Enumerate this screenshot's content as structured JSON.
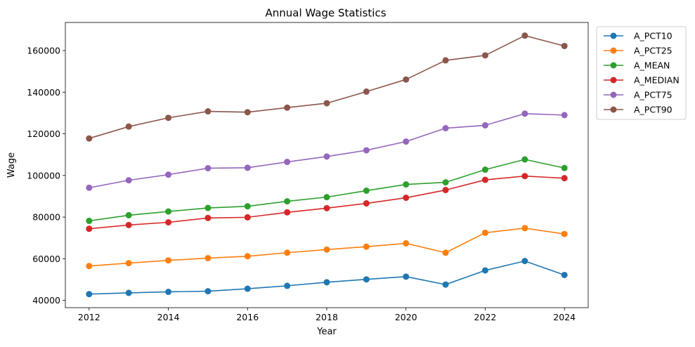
{
  "chart_data": {
    "type": "line",
    "title": "Annual Wage Statistics",
    "xlabel": "Year",
    "ylabel": "Wage",
    "x": [
      2012,
      2013,
      2014,
      2015,
      2016,
      2017,
      2018,
      2019,
      2020,
      2021,
      2022,
      2023,
      2024
    ],
    "xlim": [
      2011.4,
      2024.6
    ],
    "ylim": [
      36500,
      173500
    ],
    "x_ticks": [
      2012,
      2014,
      2016,
      2018,
      2020,
      2022,
      2024
    ],
    "y_ticks": [
      40000,
      60000,
      80000,
      100000,
      120000,
      140000,
      160000
    ],
    "x_tick_labels": [
      "2012",
      "2014",
      "2016",
      "2018",
      "2020",
      "2022",
      "2024"
    ],
    "y_tick_labels": [
      "40000",
      "60000",
      "80000",
      "100000",
      "120000",
      "140000",
      "160000"
    ],
    "grid": false,
    "legend_position": "outside-top-right",
    "series": [
      {
        "name": "A_PCT10",
        "color": "#1f77b4",
        "values": [
          43000,
          43600,
          44100,
          44400,
          45600,
          47000,
          48700,
          50100,
          51400,
          47600,
          54400,
          58900,
          52200
        ]
      },
      {
        "name": "A_PCT25",
        "color": "#ff7f0e",
        "values": [
          56500,
          57900,
          59200,
          60300,
          61200,
          62900,
          64400,
          65800,
          67400,
          62900,
          72500,
          74700,
          71900
        ]
      },
      {
        "name": "A_MEAN",
        "color": "#2ca02c",
        "values": [
          78200,
          80900,
          82700,
          84400,
          85200,
          87600,
          89600,
          92700,
          95700,
          96700,
          102800,
          107700,
          103600
        ]
      },
      {
        "name": "A_MEDIAN",
        "color": "#d62728",
        "values": [
          74400,
          76200,
          77500,
          79600,
          79900,
          82300,
          84300,
          86600,
          89300,
          93000,
          97900,
          99700,
          98700
        ]
      },
      {
        "name": "A_PCT75",
        "color": "#9467bd",
        "values": [
          94100,
          97700,
          100400,
          103500,
          103700,
          106500,
          109100,
          112100,
          116300,
          122700,
          124100,
          129700,
          129000
        ]
      },
      {
        "name": "A_PCT90",
        "color": "#8c564b",
        "values": [
          117800,
          123500,
          127700,
          130800,
          130400,
          132600,
          134700,
          140300,
          146100,
          155300,
          157700,
          167200,
          162200
        ]
      }
    ]
  }
}
